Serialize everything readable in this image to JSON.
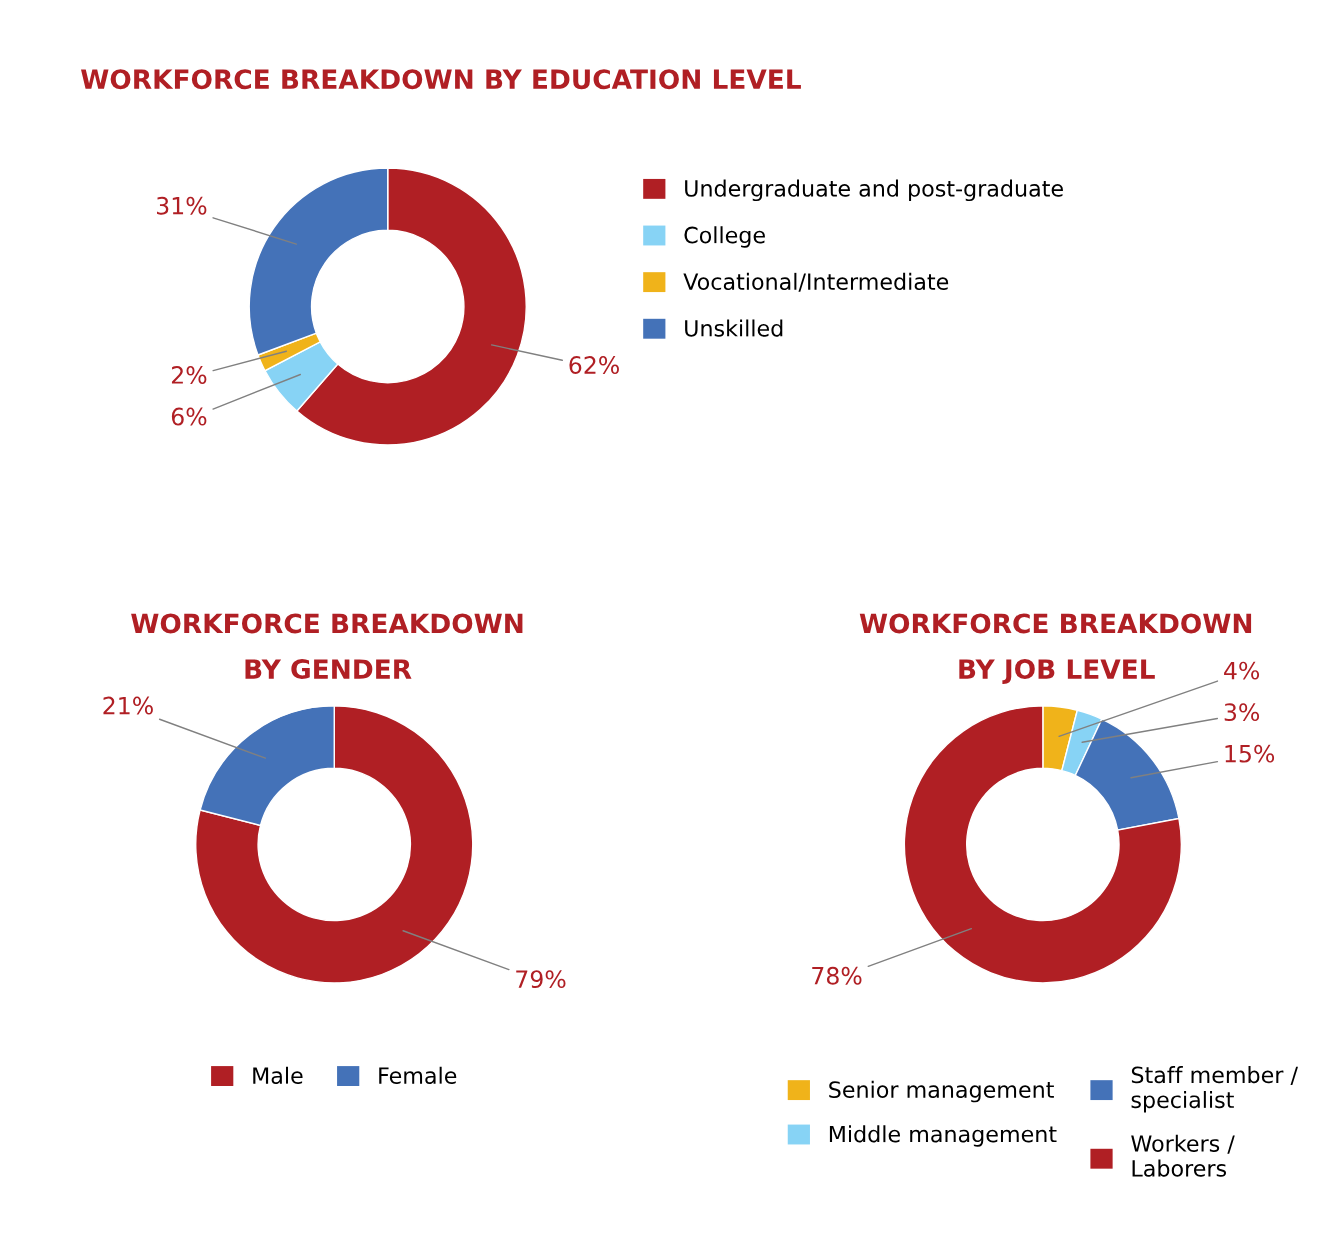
{
  "chart_data": [
    {
      "type": "donut",
      "title": "WORKFORCE BREAKDOWN BY EDUCATION LEVEL",
      "categories": [
        "Undergraduate and post-graduate",
        "College",
        "Vocational/Intermediate",
        "Unskilled"
      ],
      "values": [
        62,
        6,
        2,
        31
      ],
      "value_labels": [
        "62%",
        "6%",
        "2%",
        "31%"
      ],
      "colors": [
        "#b01f24",
        "#87d3f5",
        "#f0b31a",
        "#4472b8"
      ],
      "legend": "right"
    },
    {
      "type": "donut",
      "title": "WORKFORCE BREAKDOWN\nBY GENDER",
      "categories": [
        "Male",
        "Female"
      ],
      "values": [
        79,
        21
      ],
      "value_labels": [
        "79%",
        "21%"
      ],
      "colors": [
        "#b01f24",
        "#4472b8"
      ],
      "legend": "bottom"
    },
    {
      "type": "donut",
      "title": "WORKFORCE BREAKDOWN\nBY JOB LEVEL",
      "categories": [
        "Senior management",
        "Middle management",
        "Staff member /\nspecialist",
        "Workers /\nLaborers"
      ],
      "values": [
        4,
        3,
        15,
        78
      ],
      "value_labels": [
        "4%",
        "3%",
        "15%",
        "78%"
      ],
      "colors": [
        "#f0b31a",
        "#87d3f5",
        "#4472b8",
        "#b01f24"
      ],
      "legend": "bottom"
    }
  ]
}
